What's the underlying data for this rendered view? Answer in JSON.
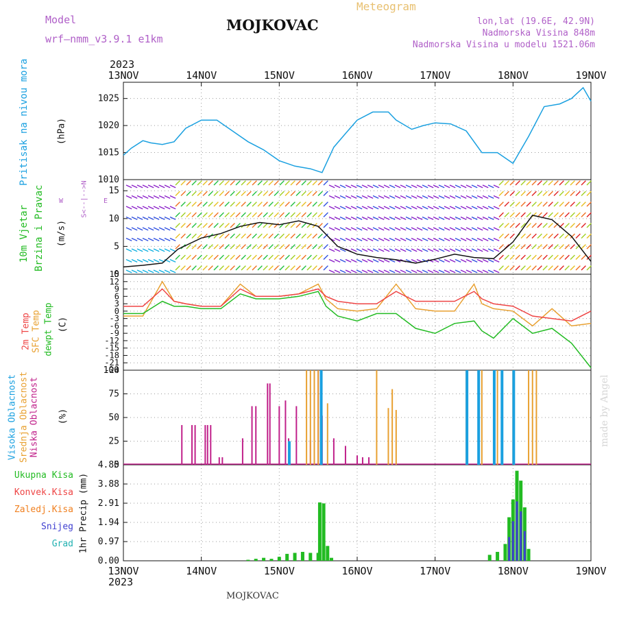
{
  "header": {
    "model_label": "Model",
    "model_name": "wrf—nmm_v3.9.1  e1km",
    "station": "MOJKOVAC",
    "product": "Meteogram",
    "lonlat": "lon,lat (19.6E, 42.9N)",
    "elevation": "Nadmorska Visina 848m",
    "model_elevation": "Nadmorska Visina u modelu 1521.06m",
    "year_top": "2023",
    "year_bottom": "2023",
    "footer_station": "MOJKOVAC",
    "credit": "made by Angel"
  },
  "colors": {
    "pressure": "#1aa0e0",
    "temp": "#ee4444",
    "sfc": "#e8a030",
    "dew": "#22bb22",
    "high_cloud": "#1aa0e0",
    "mid_cloud": "#e8a030",
    "low_cloud": "#c0208a",
    "total": "#22bb22",
    "convective": "#ee4444",
    "frozen": "#f08020",
    "snow": "#4040d0",
    "hail": "#20b0b0",
    "wind_label": "#22bb22",
    "compass": "#b060c8"
  },
  "labels": {
    "pressure": {
      "title": "Pritisak na nivou mora",
      "unit": "(hPa)"
    },
    "wind": {
      "title1": "10m Vjetar",
      "title2": "Brzina i Pravac",
      "unit": "(m/s)",
      "compass": "S<--|-->N",
      "compass_w": "W",
      "compass_e": "E"
    },
    "temp": {
      "t2m": "2m Temp",
      "sfc": "SFC Temp",
      "dew": "dewpt Temp",
      "unit": "(C)"
    },
    "cloud": {
      "high": "Visoka Oblacnost",
      "mid": "Srednja Oblacnost",
      "low": "Niska Oblacnost",
      "unit": "(%)"
    },
    "precip": {
      "total": "Ukupna Kisa",
      "convective": "Konvek.Kisa",
      "frozen": "Zaledj.Kisa",
      "snow": "Snijeg",
      "hail": "Grad",
      "unit": "1hr Precip (mm)"
    }
  },
  "chart_data": [
    {
      "type": "line",
      "title": "Pritisak na nivou mora",
      "ylabel": "(hPa)",
      "ylim": [
        1010,
        1028
      ],
      "yticks": [
        1010,
        1015,
        1020,
        1025
      ],
      "x_labels": [
        "13NOV",
        "14NOV",
        "15NOV",
        "16NOV",
        "17NOV",
        "18NOV",
        "19NOV"
      ],
      "series": [
        {
          "name": "Pritisak na nivou mora",
          "x": [
            0,
            0.1,
            0.25,
            0.35,
            0.5,
            0.65,
            0.8,
            1.0,
            1.2,
            1.4,
            1.6,
            1.8,
            2.0,
            2.2,
            2.4,
            2.55,
            2.7,
            2.85,
            3.0,
            3.2,
            3.4,
            3.5,
            3.7,
            3.85,
            4.0,
            4.2,
            4.4,
            4.6,
            4.8,
            5.0,
            5.2,
            5.4,
            5.6,
            5.75,
            5.9,
            6.0
          ],
          "values": [
            1014.5,
            1015.8,
            1017.2,
            1016.8,
            1016.5,
            1017.0,
            1019.5,
            1021.0,
            1021.0,
            1019.0,
            1017.0,
            1015.5,
            1013.5,
            1012.5,
            1012.0,
            1011.3,
            1016.0,
            1018.5,
            1021.0,
            1022.5,
            1022.5,
            1021.0,
            1019.3,
            1020.0,
            1020.5,
            1020.3,
            1019.0,
            1015.0,
            1015.0,
            1013.0,
            1018.0,
            1023.5,
            1024.0,
            1025.0,
            1027.0,
            1024.5
          ]
        }
      ]
    },
    {
      "type": "line",
      "title": "10m Vjetar Brzina i Pravac",
      "ylabel": "(m/s)",
      "ylim": [
        0,
        17
      ],
      "yticks": [
        0,
        5,
        10,
        15
      ],
      "series": [
        {
          "name": "speed",
          "x": [
            0,
            0.25,
            0.5,
            0.7,
            1.0,
            1.25,
            1.5,
            1.75,
            2.0,
            2.25,
            2.5,
            2.75,
            3.0,
            3.25,
            3.5,
            3.75,
            4.0,
            4.25,
            4.5,
            4.75,
            5.0,
            5.25,
            5.5,
            5.75,
            6.0
          ],
          "values": [
            1.3,
            1.6,
            2.0,
            4.5,
            6.5,
            7.3,
            8.6,
            9.3,
            8.9,
            9.6,
            8.6,
            5.0,
            3.6,
            3.0,
            2.6,
            2.0,
            2.7,
            3.6,
            3.0,
            2.8,
            5.8,
            10.6,
            9.8,
            6.8,
            2.3
          ]
        }
      ]
    },
    {
      "type": "line",
      "title": "2m Temp / SFC Temp / dewpt Temp",
      "ylabel": "(C)",
      "ylim": [
        -24,
        15
      ],
      "yticks": [
        -24,
        -21,
        -18,
        -15,
        -12,
        -9,
        -6,
        -3,
        0,
        3,
        6,
        9,
        12,
        15
      ],
      "series": [
        {
          "name": "2m Temp",
          "x": [
            0,
            0.25,
            0.5,
            0.65,
            0.8,
            1.0,
            1.25,
            1.5,
            1.7,
            1.85,
            2.0,
            2.25,
            2.5,
            2.6,
            2.75,
            3.0,
            3.25,
            3.5,
            3.75,
            4.0,
            4.25,
            4.5,
            4.6,
            4.75,
            5.0,
            5.25,
            5.5,
            5.75,
            6.0
          ],
          "values": [
            2,
            2,
            9,
            4,
            3,
            2,
            2,
            9,
            6,
            6,
            6,
            7,
            9,
            6,
            4,
            3,
            3,
            8,
            4,
            4,
            4,
            8,
            5,
            3,
            2,
            -2,
            -3,
            -4,
            0
          ]
        },
        {
          "name": "SFC Temp",
          "x": [
            0,
            0.25,
            0.5,
            0.65,
            0.8,
            1.0,
            1.25,
            1.5,
            1.7,
            1.85,
            2.0,
            2.25,
            2.5,
            2.6,
            2.75,
            3.0,
            3.25,
            3.5,
            3.75,
            4.0,
            4.25,
            4.5,
            4.6,
            4.75,
            5.0,
            5.25,
            5.5,
            5.75,
            6.0
          ],
          "values": [
            -2,
            -2,
            12,
            4,
            3,
            2,
            2,
            11,
            6,
            6,
            6,
            7,
            11,
            5,
            1,
            0,
            1,
            11,
            1,
            0,
            0,
            11,
            3,
            1,
            0,
            -6,
            1,
            -6,
            -5
          ]
        },
        {
          "name": "dewpt Temp",
          "x": [
            0,
            0.25,
            0.5,
            0.65,
            0.8,
            1.0,
            1.25,
            1.5,
            1.7,
            1.85,
            2.0,
            2.25,
            2.5,
            2.6,
            2.75,
            3.0,
            3.25,
            3.5,
            3.75,
            4.0,
            4.25,
            4.5,
            4.6,
            4.75,
            5.0,
            5.25,
            5.5,
            5.75,
            6.0
          ],
          "values": [
            -1,
            -1,
            4,
            2,
            2,
            1,
            1,
            7,
            5,
            5,
            5,
            6,
            8,
            2,
            -2,
            -4,
            -1,
            -1,
            -7,
            -9,
            -5,
            -4,
            -8,
            -11,
            -3,
            -9,
            -7,
            -13,
            -23
          ]
        }
      ]
    },
    {
      "type": "bar",
      "title": "Oblacnost",
      "ylabel": "(%)",
      "ylim": [
        0,
        100
      ],
      "yticks": [
        0,
        25,
        50,
        75,
        100
      ],
      "series": [
        {
          "name": "Niska Oblacnost",
          "x": [
            0.75,
            0.88,
            0.92,
            1.05,
            1.08,
            1.12,
            1.23,
            1.27,
            1.53,
            1.65,
            1.7,
            1.85,
            1.88,
            2.0,
            2.08,
            2.12,
            2.22,
            2.4,
            2.45,
            2.5,
            2.55,
            2.7,
            2.85,
            3.0,
            3.07,
            3.15
          ],
          "values": [
            42,
            42,
            42,
            42,
            42,
            42,
            8,
            8,
            28,
            62,
            62,
            86,
            86,
            62,
            68,
            28,
            62,
            26,
            100,
            100,
            52,
            28,
            20,
            10,
            8,
            8
          ]
        },
        {
          "name": "Srednja Oblacnost",
          "x": [
            2.35,
            2.4,
            2.45,
            2.5,
            2.62,
            3.25,
            3.4,
            3.45,
            3.5,
            4.4,
            4.6,
            4.8,
            5.0,
            5.2,
            5.25,
            5.3
          ],
          "values": [
            100,
            100,
            100,
            100,
            65,
            100,
            60,
            80,
            58,
            100,
            100,
            100,
            100,
            100,
            100,
            100
          ]
        },
        {
          "name": "Visoka Oblacnost",
          "x": [
            2.12,
            2.53,
            4.4,
            4.55,
            4.75,
            4.85,
            5.0
          ],
          "values": [
            25,
            100,
            100,
            100,
            100,
            100,
            100
          ]
        }
      ]
    },
    {
      "type": "bar",
      "title": "1hr Precip",
      "ylabel": "1hr Precip (mm)",
      "ylim": [
        0,
        4.85
      ],
      "yticks": [
        0,
        0.97,
        1.94,
        2.91,
        3.88,
        4.85
      ],
      "series": [
        {
          "name": "Ukupna Kisa",
          "x": [
            1.6,
            1.7,
            1.8,
            1.9,
            2.0,
            2.1,
            2.2,
            2.3,
            2.4,
            2.5,
            2.52,
            2.57,
            2.62,
            2.67,
            4.7,
            4.8,
            4.9,
            4.95,
            5.0,
            5.05,
            5.1,
            5.15,
            5.2
          ],
          "values": [
            0.05,
            0.1,
            0.15,
            0.1,
            0.2,
            0.35,
            0.4,
            0.45,
            0.4,
            0.4,
            2.95,
            2.9,
            0.75,
            0.15,
            0.3,
            0.45,
            0.85,
            2.2,
            3.1,
            4.55,
            4.05,
            2.7,
            0.6
          ]
        },
        {
          "name": "Snijeg",
          "x": [
            4.95,
            5.0,
            5.05,
            5.1,
            5.15
          ],
          "values": [
            1.2,
            2.0,
            3.0,
            2.5,
            1.5
          ]
        }
      ]
    }
  ]
}
